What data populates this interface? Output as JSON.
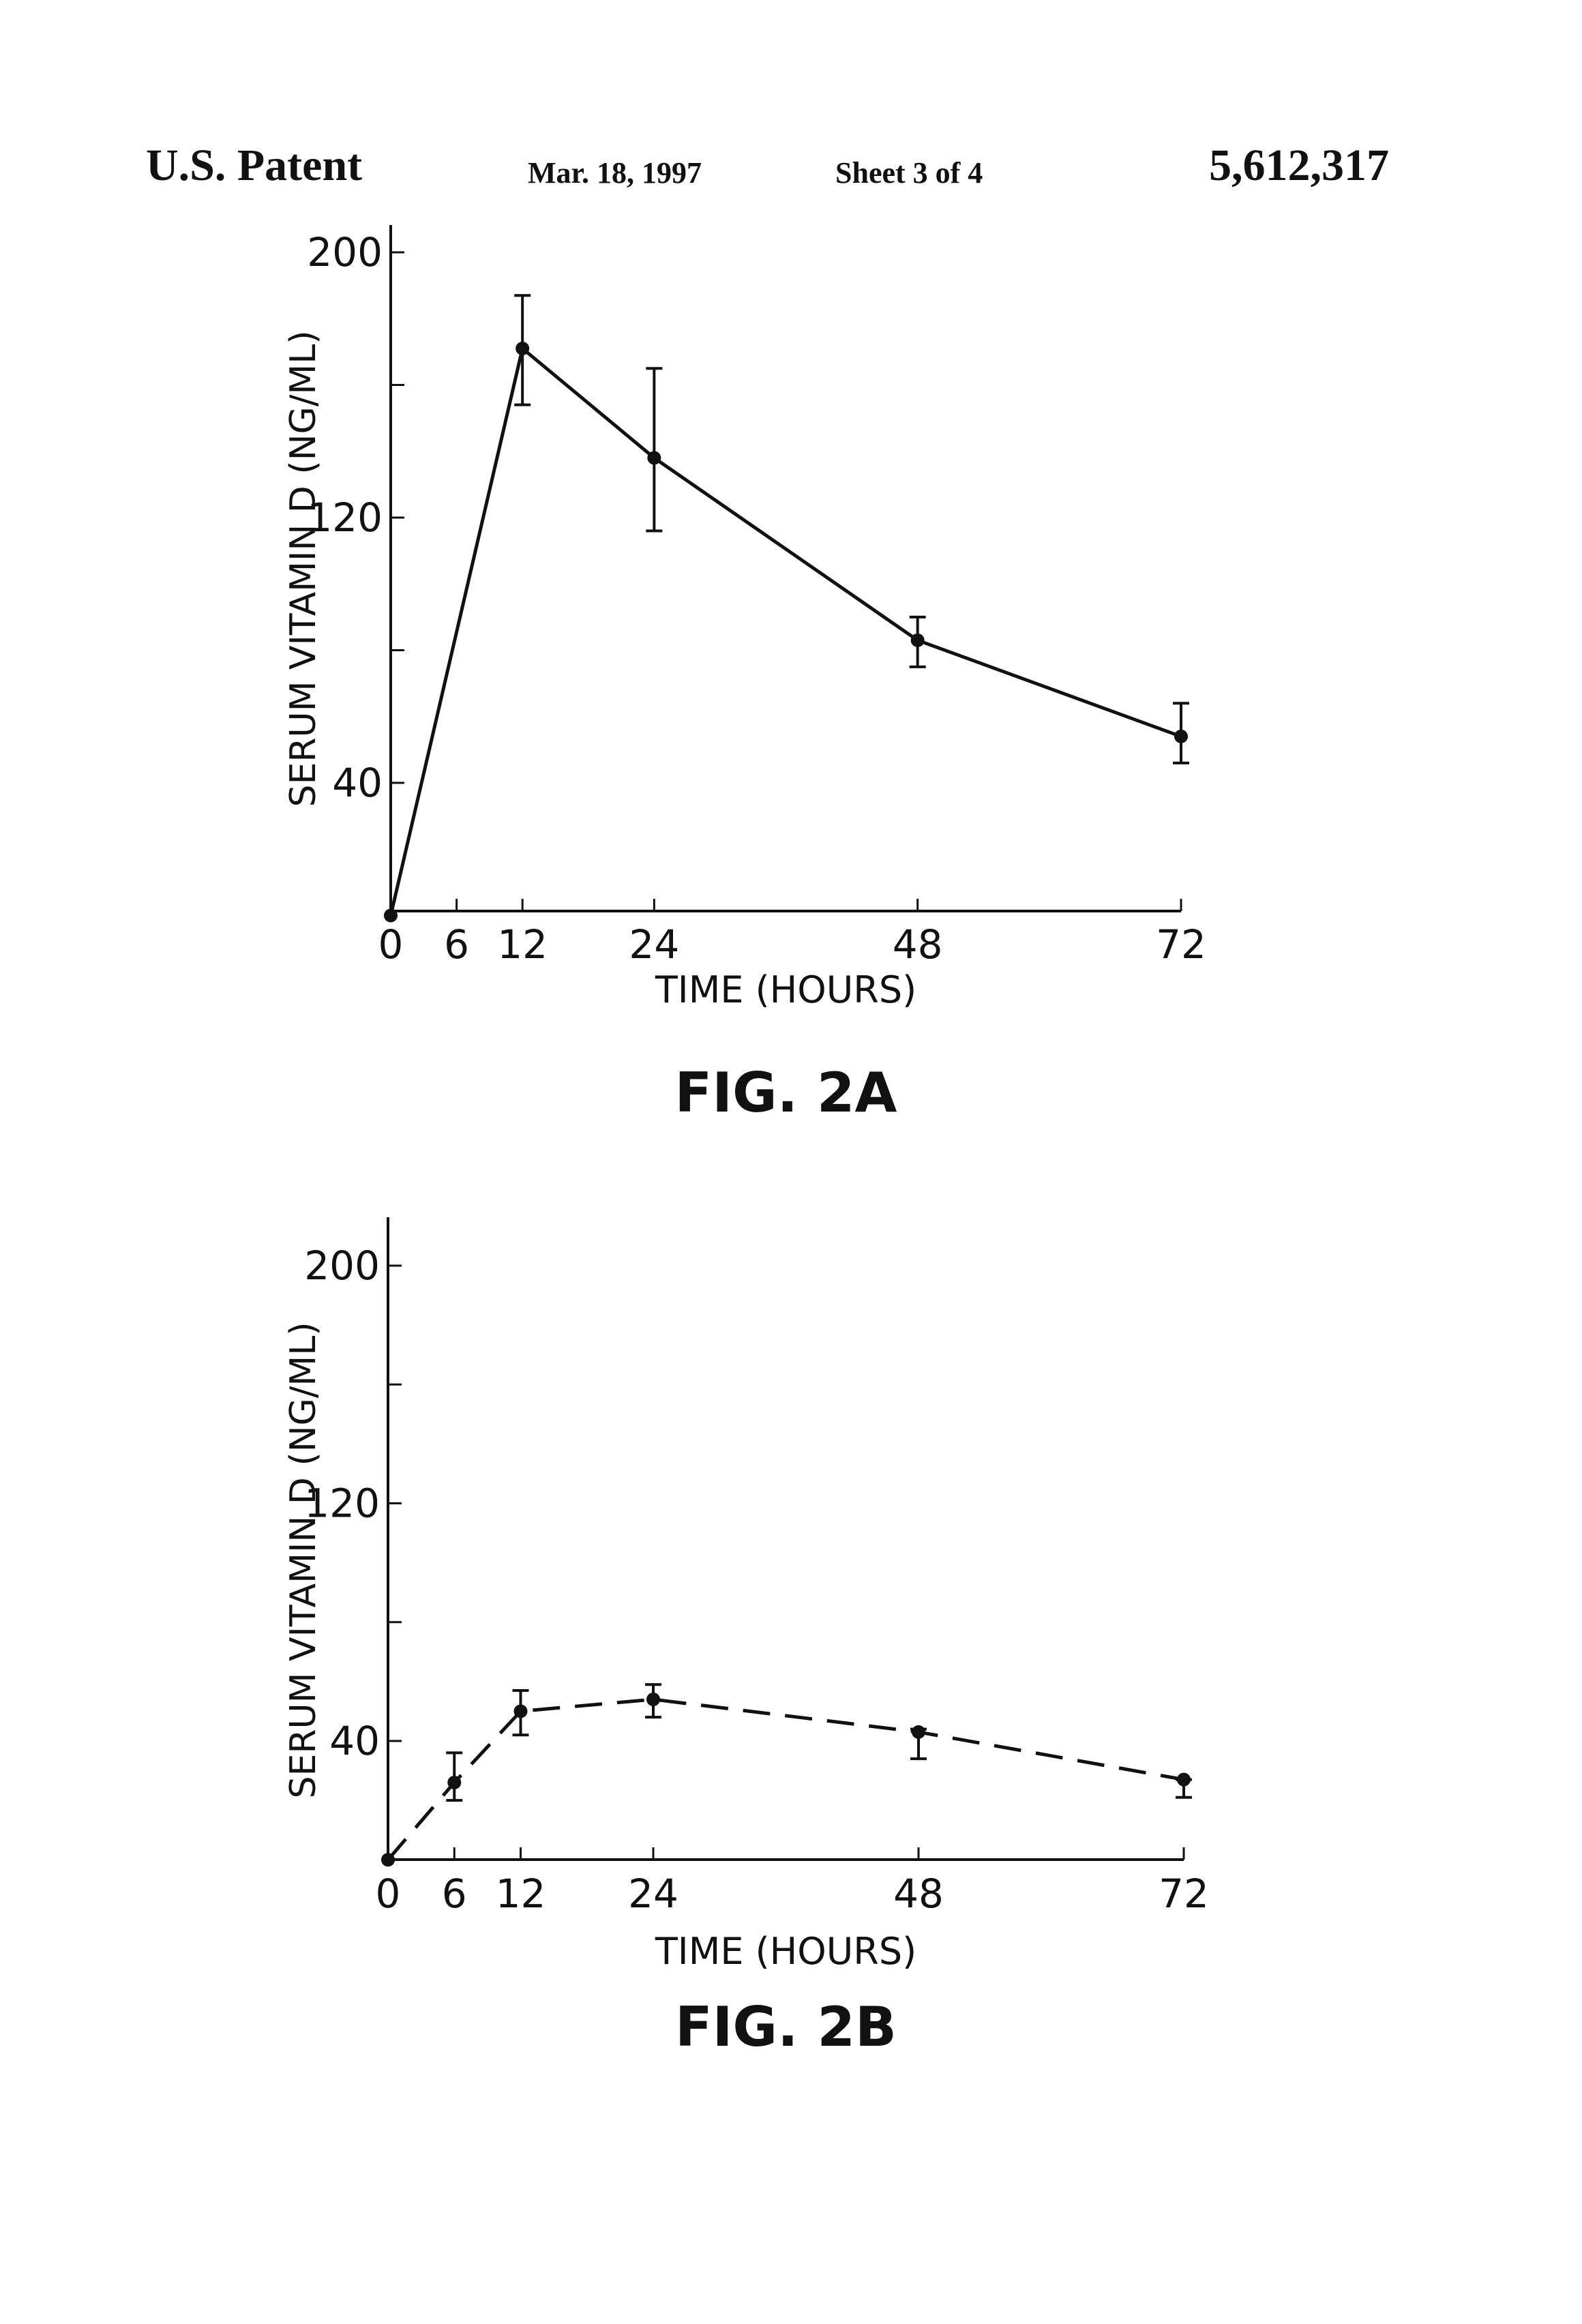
{
  "header": {
    "left": "U.S. Patent",
    "date": "Mar. 18, 1997",
    "sheet": "Sheet 3 of 4",
    "number": "5,612,317"
  },
  "chart_data": [
    {
      "type": "line",
      "title": "FIG. 2A",
      "xlabel": "TIME (HOURS)",
      "ylabel": "SERUM VITAMIN D (NG/ML)",
      "line_style": "solid",
      "xlim": [
        0,
        72
      ],
      "ylim": [
        0,
        200
      ],
      "x_ticks": [
        0,
        6,
        12,
        24,
        48,
        72
      ],
      "y_ticks": [
        40,
        80,
        120,
        160,
        200
      ],
      "y_tick_labels": [
        "40",
        "120",
        "200"
      ],
      "x": [
        0,
        12,
        24,
        48,
        72
      ],
      "y": [
        0,
        171,
        138,
        83,
        54
      ],
      "error_low": [
        null,
        154,
        116,
        75,
        46
      ],
      "error_high": [
        null,
        187,
        165,
        90,
        64
      ]
    },
    {
      "type": "line",
      "title": "FIG. 2B",
      "xlabel": "TIME (HOURS)",
      "ylabel": "SERUM VITAMIN D (NG/ML)",
      "line_style": "dashed",
      "xlim": [
        0,
        72
      ],
      "ylim": [
        0,
        200
      ],
      "x_ticks": [
        0,
        6,
        12,
        24,
        48,
        72
      ],
      "y_ticks": [
        40,
        80,
        120,
        160,
        200
      ],
      "y_tick_labels": [
        "40",
        "120",
        "200"
      ],
      "x": [
        0,
        6,
        12,
        24,
        48,
        72
      ],
      "y": [
        0,
        26,
        50,
        54,
        43,
        27
      ],
      "error_low": [
        null,
        20,
        42,
        48,
        34,
        21
      ],
      "error_high": [
        null,
        36,
        57,
        59,
        44,
        27
      ]
    }
  ]
}
